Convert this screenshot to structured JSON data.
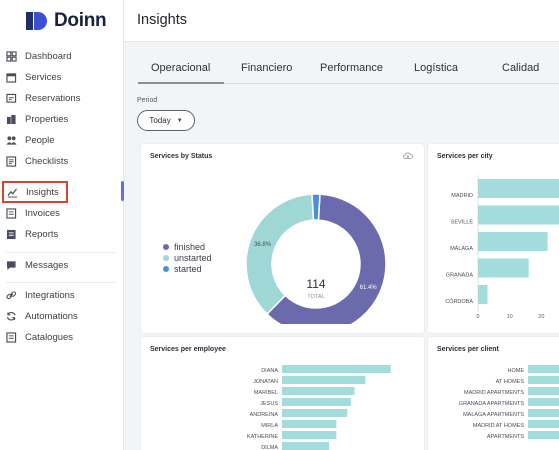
{
  "brand": {
    "name": "Doinn"
  },
  "header": {
    "title": "Insights"
  },
  "sidebar": {
    "items": [
      {
        "label": "Dashboard",
        "icon": "dashboard-icon"
      },
      {
        "label": "Services",
        "icon": "calendar-icon"
      },
      {
        "label": "Reservations",
        "icon": "reservations-icon"
      },
      {
        "label": "Properties",
        "icon": "building-icon"
      },
      {
        "label": "People",
        "icon": "people-icon"
      },
      {
        "label": "Checklists",
        "icon": "checklist-icon"
      },
      {
        "label": "Insights",
        "icon": "line-chart-icon",
        "active": true
      },
      {
        "label": "Invoices",
        "icon": "invoice-icon"
      },
      {
        "label": "Reports",
        "icon": "report-icon"
      },
      {
        "label": "Messages",
        "icon": "message-icon"
      },
      {
        "label": "Integrations",
        "icon": "link-icon"
      },
      {
        "label": "Automations",
        "icon": "sync-icon"
      },
      {
        "label": "Catalogues",
        "icon": "catalogue-icon"
      }
    ]
  },
  "tabs": [
    {
      "label": "Operacional",
      "active": true
    },
    {
      "label": "Financiero"
    },
    {
      "label": "Performance"
    },
    {
      "label": "Logística"
    },
    {
      "label": "Calidad"
    }
  ],
  "period": {
    "label": "Period",
    "value": "Today"
  },
  "colors": {
    "finished": "#6b6aac",
    "unstarted": "#9fd6d6",
    "started": "#4a90d9",
    "bar": "#a2dcdc",
    "highlight": "#d6452c",
    "brand": "#3b4fd1"
  },
  "chart_data": [
    {
      "type": "pie",
      "title": "Services by Status",
      "center_value": "114",
      "center_label": "TOTAL",
      "series": [
        {
          "name": "finished",
          "value": 61.4,
          "label": "61.4%"
        },
        {
          "name": "unstarted",
          "value": 36.8,
          "label": "36.8%"
        },
        {
          "name": "started",
          "value": 1.8
        }
      ]
    },
    {
      "type": "bar",
      "title": "Services per city",
      "categories": [
        "MADRID",
        "SEVILLE",
        "MÁLAGA",
        "GRANADA",
        "CÓRDOBA"
      ],
      "values": [
        30,
        29,
        22,
        16,
        3
      ],
      "x_ticks": [
        "0",
        "10",
        "20"
      ],
      "xlim": [
        0,
        30
      ]
    },
    {
      "type": "bar",
      "title": "Services per employee",
      "categories": [
        "DIANA",
        "JONATAN",
        "MARIBEL",
        "JESUS",
        "ANDREINA",
        "MIRLA",
        "KATHERINE",
        "DILMA"
      ],
      "values": [
        15,
        11.5,
        10,
        9.5,
        9,
        7.5,
        7.5,
        6.5
      ],
      "xlim": [
        0,
        20
      ]
    },
    {
      "type": "bar",
      "title": "Services per client",
      "categories": [
        "HOME",
        "AT HOMES",
        "MADRID APARTMENTS",
        "GRANADA APARTMENTS",
        "MALAGA APARTMENTS",
        "MADRID AT HOMES",
        "APARTMENTS"
      ],
      "values": [
        20,
        20,
        20,
        20,
        20,
        20,
        20
      ],
      "xlim": [
        0,
        20
      ]
    }
  ]
}
